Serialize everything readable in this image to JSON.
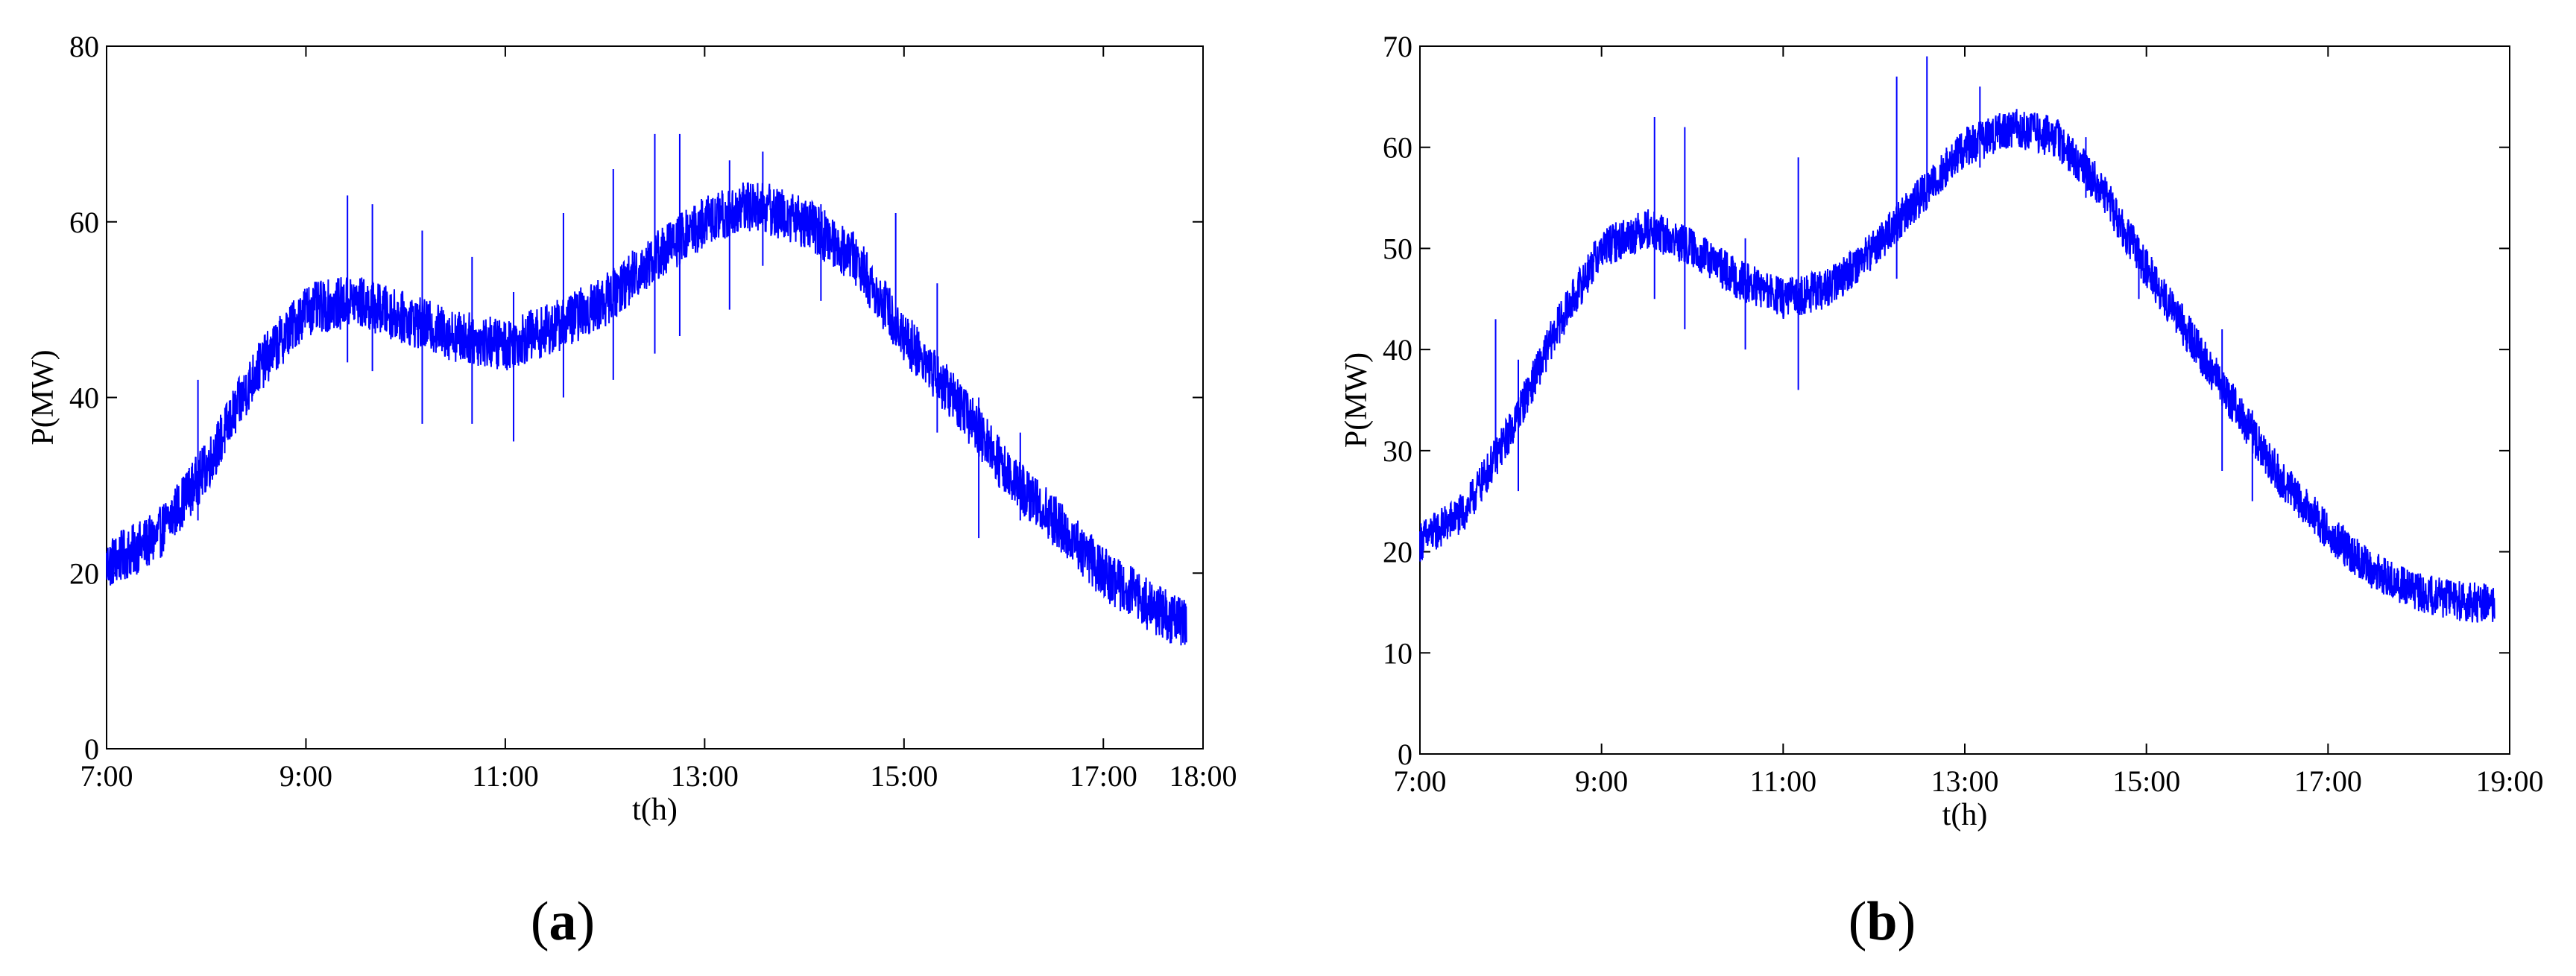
{
  "figure": {
    "panels": [
      {
        "label": "a"
      },
      {
        "label": "b"
      }
    ]
  },
  "chart_data": [
    {
      "type": "line",
      "panel": "a",
      "title": "",
      "xlabel": "t(h)",
      "ylabel": "P(MW)",
      "x_ticks": [
        "7:00",
        "9:00",
        "11:00",
        "13:00",
        "15:00",
        "17:00",
        "18:00"
      ],
      "xlim": [
        "7:00",
        "18:00"
      ],
      "y_ticks": [
        0,
        20,
        40,
        60,
        80
      ],
      "ylim": [
        0,
        80
      ],
      "grid": false,
      "legend": "none",
      "line_color": "#0000ff",
      "series": [
        {
          "x": [
            "7:00",
            "7:30",
            "8:00",
            "8:30",
            "9:00",
            "9:30",
            "10:00",
            "10:30",
            "11:00",
            "11:30",
            "12:00",
            "12:30",
            "13:00",
            "13:30",
            "14:00",
            "14:30",
            "15:00",
            "15:30",
            "16:00",
            "16:30",
            "17:00",
            "17:30",
            "17:50"
          ],
          "values": [
            21,
            24,
            32,
            43,
            50,
            51,
            49,
            47,
            46,
            48,
            51,
            56,
            60,
            62,
            60,
            56,
            47,
            40,
            32,
            26,
            20,
            16,
            14
          ]
        }
      ],
      "spikes": [
        {
          "x": "7:55",
          "values": [
            26,
            42
          ]
        },
        {
          "x": "9:25",
          "values": [
            44,
            63
          ]
        },
        {
          "x": "9:40",
          "values": [
            43,
            62
          ]
        },
        {
          "x": "10:10",
          "values": [
            37,
            59
          ]
        },
        {
          "x": "10:40",
          "values": [
            37,
            56
          ]
        },
        {
          "x": "11:05",
          "values": [
            35,
            52
          ]
        },
        {
          "x": "11:35",
          "values": [
            40,
            61
          ]
        },
        {
          "x": "12:05",
          "values": [
            42,
            66
          ]
        },
        {
          "x": "12:30",
          "values": [
            45,
            70
          ]
        },
        {
          "x": "12:45",
          "values": [
            47,
            70
          ]
        },
        {
          "x": "13:15",
          "values": [
            50,
            67
          ]
        },
        {
          "x": "13:35",
          "values": [
            55,
            68
          ]
        },
        {
          "x": "14:10",
          "values": [
            51,
            62
          ]
        },
        {
          "x": "14:55",
          "values": [
            46,
            61
          ]
        },
        {
          "x": "15:20",
          "values": [
            36,
            53
          ]
        },
        {
          "x": "15:45",
          "values": [
            24,
            40
          ]
        },
        {
          "x": "16:10",
          "values": [
            26,
            36
          ]
        }
      ],
      "noise_band": 3
    },
    {
      "type": "line",
      "panel": "b",
      "title": "",
      "xlabel": "t(h)",
      "ylabel": "P(MW)",
      "x_ticks": [
        "7:00",
        "9:00",
        "11:00",
        "13:00",
        "15:00",
        "17:00",
        "19:00"
      ],
      "xlim": [
        "7:00",
        "19:00"
      ],
      "y_ticks": [
        0,
        10,
        20,
        30,
        40,
        50,
        60,
        70
      ],
      "ylim": [
        0,
        70
      ],
      "grid": false,
      "legend": "none",
      "line_color": "#0000ff",
      "series": [
        {
          "x": [
            "7:00",
            "7:30",
            "8:00",
            "8:30",
            "9:00",
            "9:30",
            "10:00",
            "10:30",
            "11:00",
            "11:30",
            "12:00",
            "12:30",
            "13:00",
            "13:30",
            "14:00",
            "14:30",
            "15:00",
            "15:30",
            "16:00",
            "16:30",
            "17:00",
            "17:30",
            "18:00",
            "18:30",
            "18:50"
          ],
          "values": [
            21,
            24,
            32,
            42,
            50,
            52,
            50,
            47,
            45,
            46,
            50,
            55,
            60,
            62,
            61,
            56,
            48,
            41,
            34,
            27,
            22,
            18,
            16,
            15,
            15
          ]
        }
      ],
      "spikes": [
        {
          "x": "7:50",
          "values": [
            29,
            43
          ]
        },
        {
          "x": "8:05",
          "values": [
            26,
            39
          ]
        },
        {
          "x": "9:35",
          "values": [
            45,
            63
          ]
        },
        {
          "x": "9:55",
          "values": [
            42,
            62
          ]
        },
        {
          "x": "10:35",
          "values": [
            40,
            51
          ]
        },
        {
          "x": "11:10",
          "values": [
            36,
            59
          ]
        },
        {
          "x": "12:15",
          "values": [
            47,
            67
          ]
        },
        {
          "x": "12:35",
          "values": [
            54,
            69
          ]
        },
        {
          "x": "13:10",
          "values": [
            58,
            66
          ]
        },
        {
          "x": "14:20",
          "values": [
            55,
            61
          ]
        },
        {
          "x": "14:55",
          "values": [
            45,
            51
          ]
        },
        {
          "x": "15:50",
          "values": [
            28,
            42
          ]
        },
        {
          "x": "16:10",
          "values": [
            25,
            34
          ]
        }
      ],
      "noise_band": 2
    }
  ]
}
